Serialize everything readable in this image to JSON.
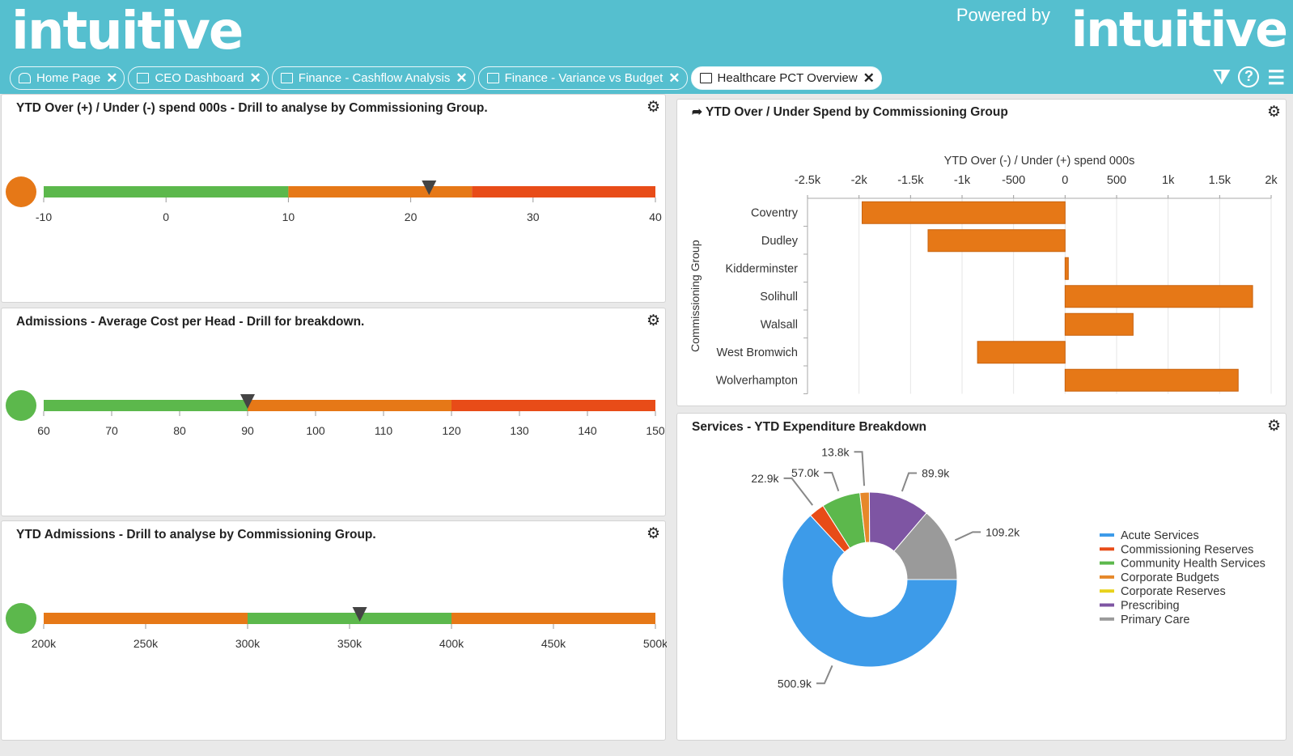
{
  "header": {
    "logo": "intuitive",
    "powered_by": "Powered by",
    "logo_right": "intuitive"
  },
  "tabs": [
    {
      "label": "Home Page",
      "icon": "home-icon"
    },
    {
      "label": "CEO Dashboard",
      "icon": "folder-icon"
    },
    {
      "label": "Finance - Cashflow Analysis",
      "icon": "folder-icon"
    },
    {
      "label": "Finance - Variance vs Budget",
      "icon": "folder-icon"
    },
    {
      "label": "Healthcare PCT Overview",
      "icon": "folder-icon",
      "active": true
    }
  ],
  "tools": {
    "filter": "⧩",
    "help": "?",
    "menu": "☰"
  },
  "gauges": [
    {
      "title": "YTD Over (+) / Under (-) spend 000s - Drill to analyse by Commissioning Group.",
      "min": -10,
      "max": 40,
      "ticks": [
        "-10",
        "0",
        "10",
        "20",
        "30",
        "40"
      ],
      "bands": [
        {
          "from": -10,
          "to": 10,
          "color": "#5cb84c"
        },
        {
          "from": 10,
          "to": 25,
          "color": "#e67817"
        },
        {
          "from": 25,
          "to": 40,
          "color": "#e84c18"
        }
      ],
      "value": 21.5,
      "status_color": "#e67817"
    },
    {
      "title": "Admissions - Average Cost per Head - Drill for breakdown.",
      "min": 60,
      "max": 150,
      "ticks": [
        "60",
        "70",
        "80",
        "90",
        "100",
        "110",
        "120",
        "130",
        "140",
        "150"
      ],
      "bands": [
        {
          "from": 60,
          "to": 90,
          "color": "#5cb84c"
        },
        {
          "from": 90,
          "to": 120,
          "color": "#e67817"
        },
        {
          "from": 120,
          "to": 150,
          "color": "#e84c18"
        }
      ],
      "value": 90,
      "status_color": "#5cb84c"
    },
    {
      "title": "YTD Admissions - Drill to analyse by Commissioning Group.",
      "min": 200,
      "max": 500,
      "ticks": [
        "200k",
        "250k",
        "300k",
        "350k",
        "400k",
        "450k",
        "500k"
      ],
      "bands": [
        {
          "from": 200,
          "to": 300,
          "color": "#e67817"
        },
        {
          "from": 300,
          "to": 400,
          "color": "#5cb84c"
        },
        {
          "from": 400,
          "to": 500,
          "color": "#e67817"
        }
      ],
      "value": 355,
      "status_color": "#5cb84c"
    }
  ],
  "chart_data": [
    {
      "type": "bar",
      "orientation": "horizontal",
      "title": "YTD Over / Under Spend by Commissioning Group",
      "xlabel": "YTD Over (-) / Under (+) spend 000s",
      "ylabel": "Commissioning Group",
      "xlim": [
        -2500,
        2000
      ],
      "xticks": [
        "-2.5k",
        "-2k",
        "-1.5k",
        "-1k",
        "-500",
        "0",
        "500",
        "1k",
        "1.5k",
        "2k"
      ],
      "grid": true,
      "color": "#e67817",
      "categories": [
        "Coventry",
        "Dudley",
        "Kidderminster",
        "Solihull",
        "Walsall",
        "West Bromwich",
        "Wolverhampton"
      ],
      "values": [
        -1970,
        -1330,
        30,
        1820,
        660,
        -850,
        1680
      ]
    },
    {
      "type": "pie",
      "donut": true,
      "title": "Services - YTD Expenditure Breakdown",
      "legend": "right",
      "categories": [
        "Acute Services",
        "Commissioning Reserves",
        "Community Health Services",
        "Corporate Budgets",
        "Corporate Reserves",
        "Prescribing",
        "Primary Care"
      ],
      "values": [
        500.9,
        22.9,
        57.0,
        13.8,
        0,
        89.9,
        109.2
      ],
      "labels": [
        "500.9k",
        "22.9k",
        "57.0k",
        "13.8k",
        "",
        "89.9k",
        "109.2k"
      ],
      "colors": [
        "#3d9be9",
        "#e84c18",
        "#5cb84c",
        "#e6882a",
        "#e8d21c",
        "#7e55a3",
        "#9a9a9a"
      ]
    }
  ]
}
